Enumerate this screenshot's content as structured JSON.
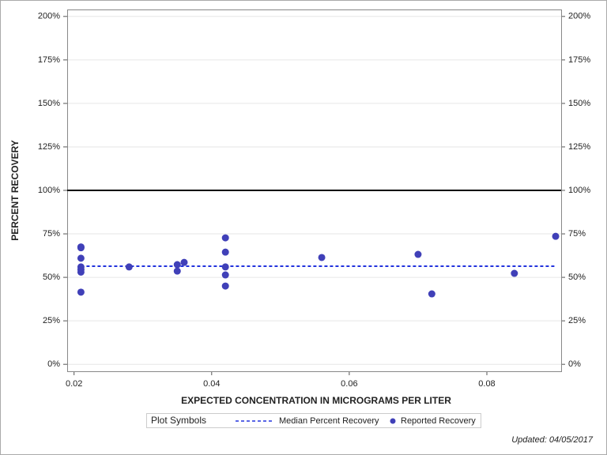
{
  "chart_data": {
    "type": "scatter",
    "xlabel": "EXPECTED CONCENTRATION IN MICROGRAMS PER LITER",
    "ylabel": "PERCENT RECOVERY",
    "xlim": [
      0.019,
      0.0908
    ],
    "xticks": [
      0.02,
      0.04,
      0.06,
      0.08
    ],
    "ylim": [
      -4,
      204
    ],
    "yticks": [
      {
        "value": 0,
        "label": "0%"
      },
      {
        "value": 25,
        "label": "25%"
      },
      {
        "value": 50,
        "label": "50%"
      },
      {
        "value": 75,
        "label": "75%"
      },
      {
        "value": 100,
        "label": "100%"
      },
      {
        "value": 125,
        "label": "125%"
      },
      {
        "value": 150,
        "label": "150%"
      },
      {
        "value": 175,
        "label": "175%"
      },
      {
        "value": 200,
        "label": "200%"
      }
    ],
    "y2lim": [
      -4,
      204
    ],
    "y2ticks": [
      {
        "value": 0,
        "label": "0%"
      },
      {
        "value": 25,
        "label": "25%"
      },
      {
        "value": 50,
        "label": "50%"
      },
      {
        "value": 75,
        "label": "75%"
      },
      {
        "value": 100,
        "label": "100%"
      },
      {
        "value": 125,
        "label": "125%"
      },
      {
        "value": 150,
        "label": "150%"
      },
      {
        "value": 175,
        "label": "175%"
      },
      {
        "value": 200,
        "label": "200%"
      }
    ],
    "grid": true,
    "reference_line": 100,
    "legend_title": "Plot Symbols",
    "series": [
      {
        "name": "Median Percent Recovery",
        "style": "dashed-line",
        "color": "#2233dd",
        "x": [
          0.021,
          0.09
        ],
        "values": [
          56.4,
          56.4
        ]
      },
      {
        "name": "Reported Recovery",
        "style": "marker",
        "color": "#4040b8",
        "x": [
          0.021,
          0.021,
          0.021,
          0.021,
          0.021,
          0.021,
          0.021,
          0.028,
          0.035,
          0.035,
          0.036,
          0.042,
          0.042,
          0.042,
          0.042,
          0.042,
          0.056,
          0.07,
          0.072,
          0.084,
          0.09
        ],
        "values": [
          67.5,
          67,
          61,
          56,
          54.5,
          53,
          41.5,
          56,
          57.3,
          53.6,
          58.6,
          72.7,
          64.5,
          56,
          51.4,
          45,
          61.4,
          63.2,
          40.5,
          52.3,
          73.6
        ]
      }
    ],
    "note": "Updated: 04/05/2017"
  }
}
